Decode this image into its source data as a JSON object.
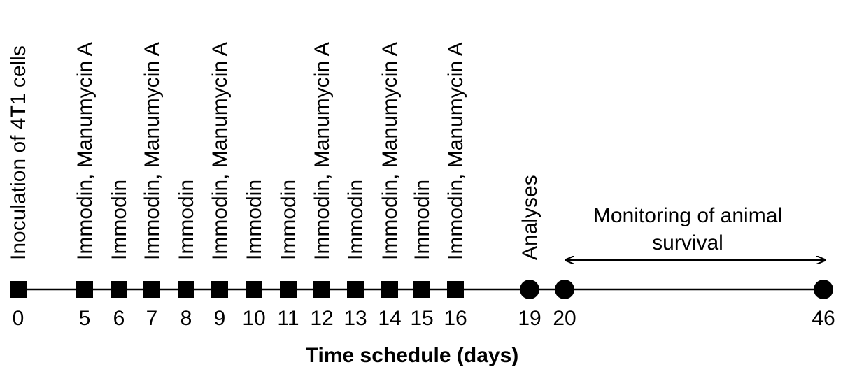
{
  "figure": {
    "axis_title": "Time schedule (days)",
    "monitoring_label": {
      "line1": "Monitoring of animal",
      "line2": "survival"
    }
  },
  "colors": {
    "ink": "#000000",
    "background": "#ffffff"
  },
  "events": [
    {
      "day": "0",
      "label": "Inoculation of 4T1 cells",
      "marker": "square"
    },
    {
      "day": "5",
      "label": "Immodin, Manumycin A",
      "marker": "square"
    },
    {
      "day": "6",
      "label": "Immodin",
      "marker": "square"
    },
    {
      "day": "7",
      "label": "Immodin, Manumycin A",
      "marker": "square"
    },
    {
      "day": "8",
      "label": "Immodin",
      "marker": "square"
    },
    {
      "day": "9",
      "label": "Immodin, Manumycin A",
      "marker": "square"
    },
    {
      "day": "10",
      "label": "Immodin",
      "marker": "square"
    },
    {
      "day": "11",
      "label": "Immodin",
      "marker": "square"
    },
    {
      "day": "12",
      "label": "Immodin, Manumycin A",
      "marker": "square"
    },
    {
      "day": "13",
      "label": "Immodin",
      "marker": "square"
    },
    {
      "day": "14",
      "label": "Immodin, Manumycin A",
      "marker": "square"
    },
    {
      "day": "15",
      "label": "Immodin",
      "marker": "square"
    },
    {
      "day": "16",
      "label": "Immodin, Manumycin A",
      "marker": "square"
    },
    {
      "day": "19",
      "label": "Analyses",
      "marker": "circle"
    },
    {
      "day": "20",
      "label": "",
      "marker": "circle"
    },
    {
      "day": "46",
      "label": "",
      "marker": "circle"
    }
  ]
}
